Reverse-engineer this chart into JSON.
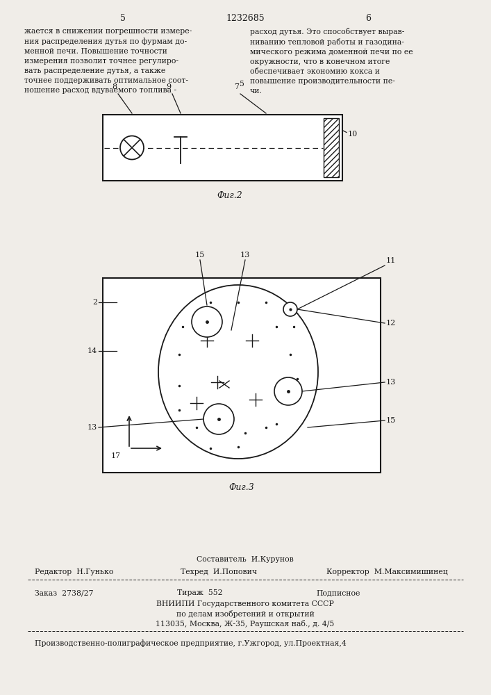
{
  "bg_color": "#f0ede8",
  "page_number_left": "5",
  "page_number_center": "1232685",
  "page_number_right": "6",
  "fig2_label": "Фиг.2",
  "fig3_label": "Фиг.3",
  "text_left_col": "жается в снижении погрешности измере-\nния распределения дутья по фурмам до-\nменной печи. Повышение точности\nизмерения позволит точнее регулиро-\nвать распределение дутья, а также\nточнее поддерживать оптимальное соот-\nношение расход вдуваемого топлива -",
  "text_right_col": "расход дутья. Это способствует вырав-\nниванию тепловой работы и газодина-\nмического режима доменной печи по ее\nокружности, что в конечном итоге\nобеспечивает экономию кокса и\nповышение производительности пе-\nчи.",
  "footer_composer": "Составитель  И.Курунов",
  "footer_editor": "Редактор  Н.Гунько",
  "footer_techred": "Техред  И.Попович",
  "footer_corrector": "Корректор  М.Максимишинец",
  "footer_zakaz": "Заказ  2738/27",
  "footer_tirazh": "Тираж  552",
  "footer_podpisnoe": "Подписное",
  "footer_vniip1": "ВНИИПИ Государственного комитета СССР",
  "footer_vniip2": "по делам изобретений и открытий",
  "footer_vniip3": "113035, Москва, Ж-35, Раушская наб., д. 4/5",
  "footer_prod": "Производственно-полиграфическое предприятие, г.Ужгород, ул.Проектная,4"
}
